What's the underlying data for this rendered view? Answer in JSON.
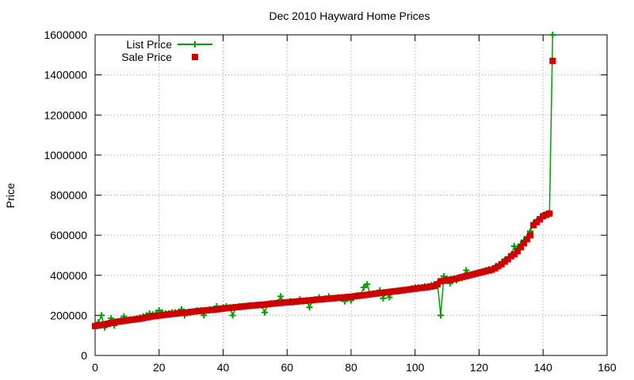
{
  "chart_data": {
    "type": "line",
    "title": "Dec 2010 Hayward Home Prices",
    "xlabel": "",
    "ylabel": "Price",
    "xlim": [
      0,
      160
    ],
    "ylim": [
      0,
      1600000
    ],
    "x_ticks": [
      0,
      20,
      40,
      60,
      80,
      100,
      120,
      140,
      160
    ],
    "y_ticks": [
      0,
      200000,
      400000,
      600000,
      800000,
      1000000,
      1200000,
      1400000,
      1600000
    ],
    "x_tick_labels": [
      "0",
      "20",
      "40",
      "60",
      "80",
      "100",
      "120",
      "140",
      "160"
    ],
    "y_tick_labels": [
      "0",
      "200000",
      "400000",
      "600000",
      "800000",
      "1000000",
      "1200000",
      "1400000",
      "1600000"
    ],
    "grid": true,
    "grid_style": "dotted",
    "legend_position": "top-left",
    "series": [
      {
        "name": "List Price",
        "style": "linespoints",
        "marker": "plus",
        "color": "#00a000",
        "points": [
          [
            0,
            145000
          ],
          [
            1,
            165000
          ],
          [
            2,
            200000
          ],
          [
            3,
            140000
          ],
          [
            4,
            160000
          ],
          [
            5,
            185000
          ],
          [
            6,
            150000
          ],
          [
            7,
            170000
          ],
          [
            8,
            175000
          ],
          [
            9,
            195000
          ],
          [
            10,
            175000
          ],
          [
            11,
            180000
          ],
          [
            12,
            180000
          ],
          [
            13,
            185000
          ],
          [
            14,
            190000
          ],
          [
            15,
            195000
          ],
          [
            16,
            200000
          ],
          [
            17,
            210000
          ],
          [
            18,
            205000
          ],
          [
            19,
            210000
          ],
          [
            20,
            225000
          ],
          [
            21,
            215000
          ],
          [
            22,
            210000
          ],
          [
            23,
            210000
          ],
          [
            24,
            215000
          ],
          [
            25,
            215000
          ],
          [
            26,
            215000
          ],
          [
            27,
            230000
          ],
          [
            28,
            200000
          ],
          [
            29,
            215000
          ],
          [
            30,
            215000
          ],
          [
            31,
            220000
          ],
          [
            32,
            225000
          ],
          [
            33,
            225000
          ],
          [
            34,
            200000
          ],
          [
            35,
            225000
          ],
          [
            36,
            230000
          ],
          [
            37,
            230000
          ],
          [
            38,
            245000
          ],
          [
            39,
            235000
          ],
          [
            40,
            240000
          ],
          [
            41,
            245000
          ],
          [
            42,
            240000
          ],
          [
            43,
            200000
          ],
          [
            44,
            240000
          ],
          [
            45,
            245000
          ],
          [
            46,
            245000
          ],
          [
            47,
            245000
          ],
          [
            48,
            250000
          ],
          [
            49,
            250000
          ],
          [
            50,
            250000
          ],
          [
            51,
            250000
          ],
          [
            52,
            250000
          ],
          [
            53,
            215000
          ],
          [
            54,
            255000
          ],
          [
            55,
            260000
          ],
          [
            56,
            260000
          ],
          [
            57,
            265000
          ],
          [
            58,
            295000
          ],
          [
            59,
            265000
          ],
          [
            60,
            265000
          ],
          [
            61,
            270000
          ],
          [
            62,
            265000
          ],
          [
            63,
            270000
          ],
          [
            64,
            280000
          ],
          [
            65,
            270000
          ],
          [
            66,
            275000
          ],
          [
            67,
            240000
          ],
          [
            68,
            275000
          ],
          [
            69,
            280000
          ],
          [
            70,
            290000
          ],
          [
            71,
            280000
          ],
          [
            72,
            285000
          ],
          [
            73,
            295000
          ],
          [
            74,
            285000
          ],
          [
            75,
            285000
          ],
          [
            76,
            290000
          ],
          [
            77,
            285000
          ],
          [
            78,
            270000
          ],
          [
            79,
            290000
          ],
          [
            80,
            275000
          ],
          [
            81,
            295000
          ],
          [
            82,
            300000
          ],
          [
            83,
            300000
          ],
          [
            84,
            340000
          ],
          [
            85,
            355000
          ],
          [
            86,
            305000
          ],
          [
            87,
            310000
          ],
          [
            88,
            310000
          ],
          [
            89,
            325000
          ],
          [
            90,
            285000
          ],
          [
            91,
            315000
          ],
          [
            92,
            290000
          ],
          [
            93,
            320000
          ],
          [
            94,
            320000
          ],
          [
            95,
            320000
          ],
          [
            96,
            325000
          ],
          [
            97,
            325000
          ],
          [
            98,
            330000
          ],
          [
            99,
            335000
          ],
          [
            100,
            340000
          ],
          [
            101,
            340000
          ],
          [
            102,
            340000
          ],
          [
            103,
            345000
          ],
          [
            104,
            345000
          ],
          [
            105,
            350000
          ],
          [
            106,
            355000
          ],
          [
            107,
            360000
          ],
          [
            108,
            200000
          ],
          [
            109,
            395000
          ],
          [
            110,
            380000
          ],
          [
            111,
            360000
          ],
          [
            112,
            380000
          ],
          [
            113,
            375000
          ],
          [
            114,
            390000
          ],
          [
            115,
            395000
          ],
          [
            116,
            425000
          ],
          [
            117,
            400000
          ],
          [
            118,
            405000
          ],
          [
            119,
            410000
          ],
          [
            120,
            415000
          ],
          [
            121,
            420000
          ],
          [
            122,
            425000
          ],
          [
            123,
            430000
          ],
          [
            124,
            425000
          ],
          [
            125,
            440000
          ],
          [
            126,
            445000
          ],
          [
            127,
            460000
          ],
          [
            128,
            475000
          ],
          [
            129,
            480000
          ],
          [
            130,
            500000
          ],
          [
            131,
            545000
          ],
          [
            132,
            530000
          ],
          [
            133,
            555000
          ],
          [
            134,
            575000
          ],
          [
            135,
            590000
          ],
          [
            136,
            620000
          ],
          [
            137,
            660000
          ],
          [
            138,
            670000
          ],
          [
            139,
            680000
          ],
          [
            140,
            700000
          ],
          [
            141,
            705000
          ],
          [
            142,
            710000
          ],
          [
            143,
            1600000
          ]
        ]
      },
      {
        "name": "Sale Price",
        "style": "points",
        "marker": "square",
        "color": "#cc0000",
        "points": [
          [
            0,
            147000
          ],
          [
            1,
            150000
          ],
          [
            2,
            152000
          ],
          [
            3,
            155000
          ],
          [
            4,
            158000
          ],
          [
            5,
            162000
          ],
          [
            6,
            165000
          ],
          [
            7,
            168000
          ],
          [
            8,
            170000
          ],
          [
            9,
            172000
          ],
          [
            10,
            175000
          ],
          [
            11,
            177000
          ],
          [
            12,
            179000
          ],
          [
            13,
            181000
          ],
          [
            14,
            183000
          ],
          [
            15,
            186000
          ],
          [
            16,
            190000
          ],
          [
            17,
            192000
          ],
          [
            18,
            195000
          ],
          [
            19,
            197000
          ],
          [
            20,
            199000
          ],
          [
            21,
            201000
          ],
          [
            22,
            203000
          ],
          [
            23,
            205000
          ],
          [
            24,
            207000
          ],
          [
            25,
            208000
          ],
          [
            26,
            210000
          ],
          [
            27,
            212000
          ],
          [
            28,
            213000
          ],
          [
            29,
            215000
          ],
          [
            30,
            217000
          ],
          [
            31,
            219000
          ],
          [
            32,
            221000
          ],
          [
            33,
            222000
          ],
          [
            34,
            224000
          ],
          [
            35,
            225000
          ],
          [
            36,
            227000
          ],
          [
            37,
            228000
          ],
          [
            38,
            230000
          ],
          [
            39,
            232000
          ],
          [
            40,
            234000
          ],
          [
            41,
            236000
          ],
          [
            42,
            237000
          ],
          [
            43,
            239000
          ],
          [
            44,
            241000
          ],
          [
            45,
            242000
          ],
          [
            46,
            244000
          ],
          [
            47,
            246000
          ],
          [
            48,
            247000
          ],
          [
            49,
            249000
          ],
          [
            50,
            250000
          ],
          [
            51,
            252000
          ],
          [
            52,
            253000
          ],
          [
            53,
            254000
          ],
          [
            54,
            256000
          ],
          [
            55,
            258000
          ],
          [
            56,
            259000
          ],
          [
            57,
            261000
          ],
          [
            58,
            262000
          ],
          [
            59,
            264000
          ],
          [
            60,
            265000
          ],
          [
            61,
            266000
          ],
          [
            62,
            268000
          ],
          [
            63,
            269000
          ],
          [
            64,
            271000
          ],
          [
            65,
            272000
          ],
          [
            66,
            273000
          ],
          [
            67,
            275000
          ],
          [
            68,
            276000
          ],
          [
            69,
            278000
          ],
          [
            70,
            279000
          ],
          [
            71,
            280000
          ],
          [
            72,
            282000
          ],
          [
            73,
            283000
          ],
          [
            74,
            285000
          ],
          [
            75,
            286000
          ],
          [
            76,
            287000
          ],
          [
            77,
            289000
          ],
          [
            78,
            290000
          ],
          [
            79,
            292000
          ],
          [
            80,
            293000
          ],
          [
            81,
            295000
          ],
          [
            82,
            297000
          ],
          [
            83,
            299000
          ],
          [
            84,
            301000
          ],
          [
            85,
            303000
          ],
          [
            86,
            305000
          ],
          [
            87,
            307000
          ],
          [
            88,
            309000
          ],
          [
            89,
            311000
          ],
          [
            90,
            313000
          ],
          [
            91,
            315000
          ],
          [
            92,
            317000
          ],
          [
            93,
            319000
          ],
          [
            94,
            321000
          ],
          [
            95,
            323000
          ],
          [
            96,
            325000
          ],
          [
            97,
            327000
          ],
          [
            98,
            329000
          ],
          [
            99,
            331000
          ],
          [
            100,
            333000
          ],
          [
            101,
            335000
          ],
          [
            102,
            337000
          ],
          [
            103,
            339000
          ],
          [
            104,
            341000
          ],
          [
            105,
            344000
          ],
          [
            106,
            347000
          ],
          [
            107,
            355000
          ],
          [
            108,
            370000
          ],
          [
            109,
            373000
          ],
          [
            110,
            375000
          ],
          [
            111,
            378000
          ],
          [
            112,
            381000
          ],
          [
            113,
            384000
          ],
          [
            114,
            388000
          ],
          [
            115,
            392000
          ],
          [
            116,
            396000
          ],
          [
            117,
            400000
          ],
          [
            118,
            404000
          ],
          [
            119,
            408000
          ],
          [
            120,
            412000
          ],
          [
            121,
            416000
          ],
          [
            122,
            420000
          ],
          [
            123,
            424000
          ],
          [
            124,
            428000
          ],
          [
            125,
            435000
          ],
          [
            126,
            445000
          ],
          [
            127,
            455000
          ],
          [
            128,
            468000
          ],
          [
            129,
            480000
          ],
          [
            130,
            495000
          ],
          [
            131,
            505000
          ],
          [
            132,
            520000
          ],
          [
            133,
            540000
          ],
          [
            134,
            560000
          ],
          [
            135,
            580000
          ],
          [
            136,
            600000
          ],
          [
            137,
            650000
          ],
          [
            138,
            665000
          ],
          [
            139,
            680000
          ],
          [
            140,
            695000
          ],
          [
            141,
            702000
          ],
          [
            142,
            708000
          ],
          [
            143,
            1470000
          ]
        ]
      }
    ]
  }
}
